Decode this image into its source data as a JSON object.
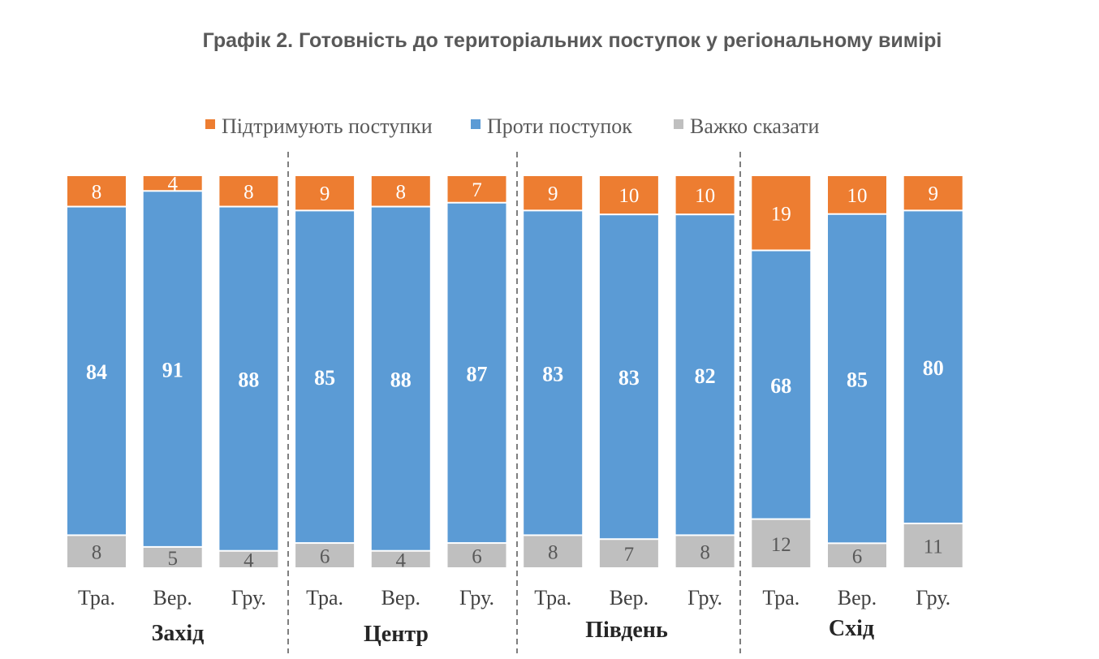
{
  "title": "Графік 2. Готовність до територіальних поступок у регіональному вимірі",
  "chart_data": {
    "type": "bar",
    "stacked": true,
    "legend": {
      "placement": "top",
      "entries": [
        {
          "name": "Підтримують поступки",
          "color": "#ED7D31"
        },
        {
          "name": "Проти поступок",
          "color": "#5B9BD5"
        },
        {
          "name": "Важко сказати",
          "color": "#BFBFBF"
        }
      ]
    },
    "groups": [
      "Захід",
      "Центр",
      "Південь",
      "Схід"
    ],
    "categories": [
      "Тра.",
      "Вер.",
      "Гру.",
      "Тра.",
      "Вер.",
      "Гру.",
      "Тра.",
      "Вер.",
      "Гру.",
      "Тра.",
      "Вер.",
      "Гру."
    ],
    "series": [
      {
        "name": "Підтримують поступки",
        "values": [
          8,
          4,
          8,
          9,
          8,
          7,
          9,
          10,
          10,
          19,
          10,
          9
        ]
      },
      {
        "name": "Проти поступок",
        "values": [
          84,
          91,
          88,
          85,
          88,
          87,
          83,
          83,
          82,
          68,
          85,
          80
        ]
      },
      {
        "name": "Важко сказати",
        "values": [
          8,
          5,
          4,
          6,
          4,
          6,
          8,
          7,
          8,
          12,
          6,
          11
        ]
      }
    ]
  }
}
